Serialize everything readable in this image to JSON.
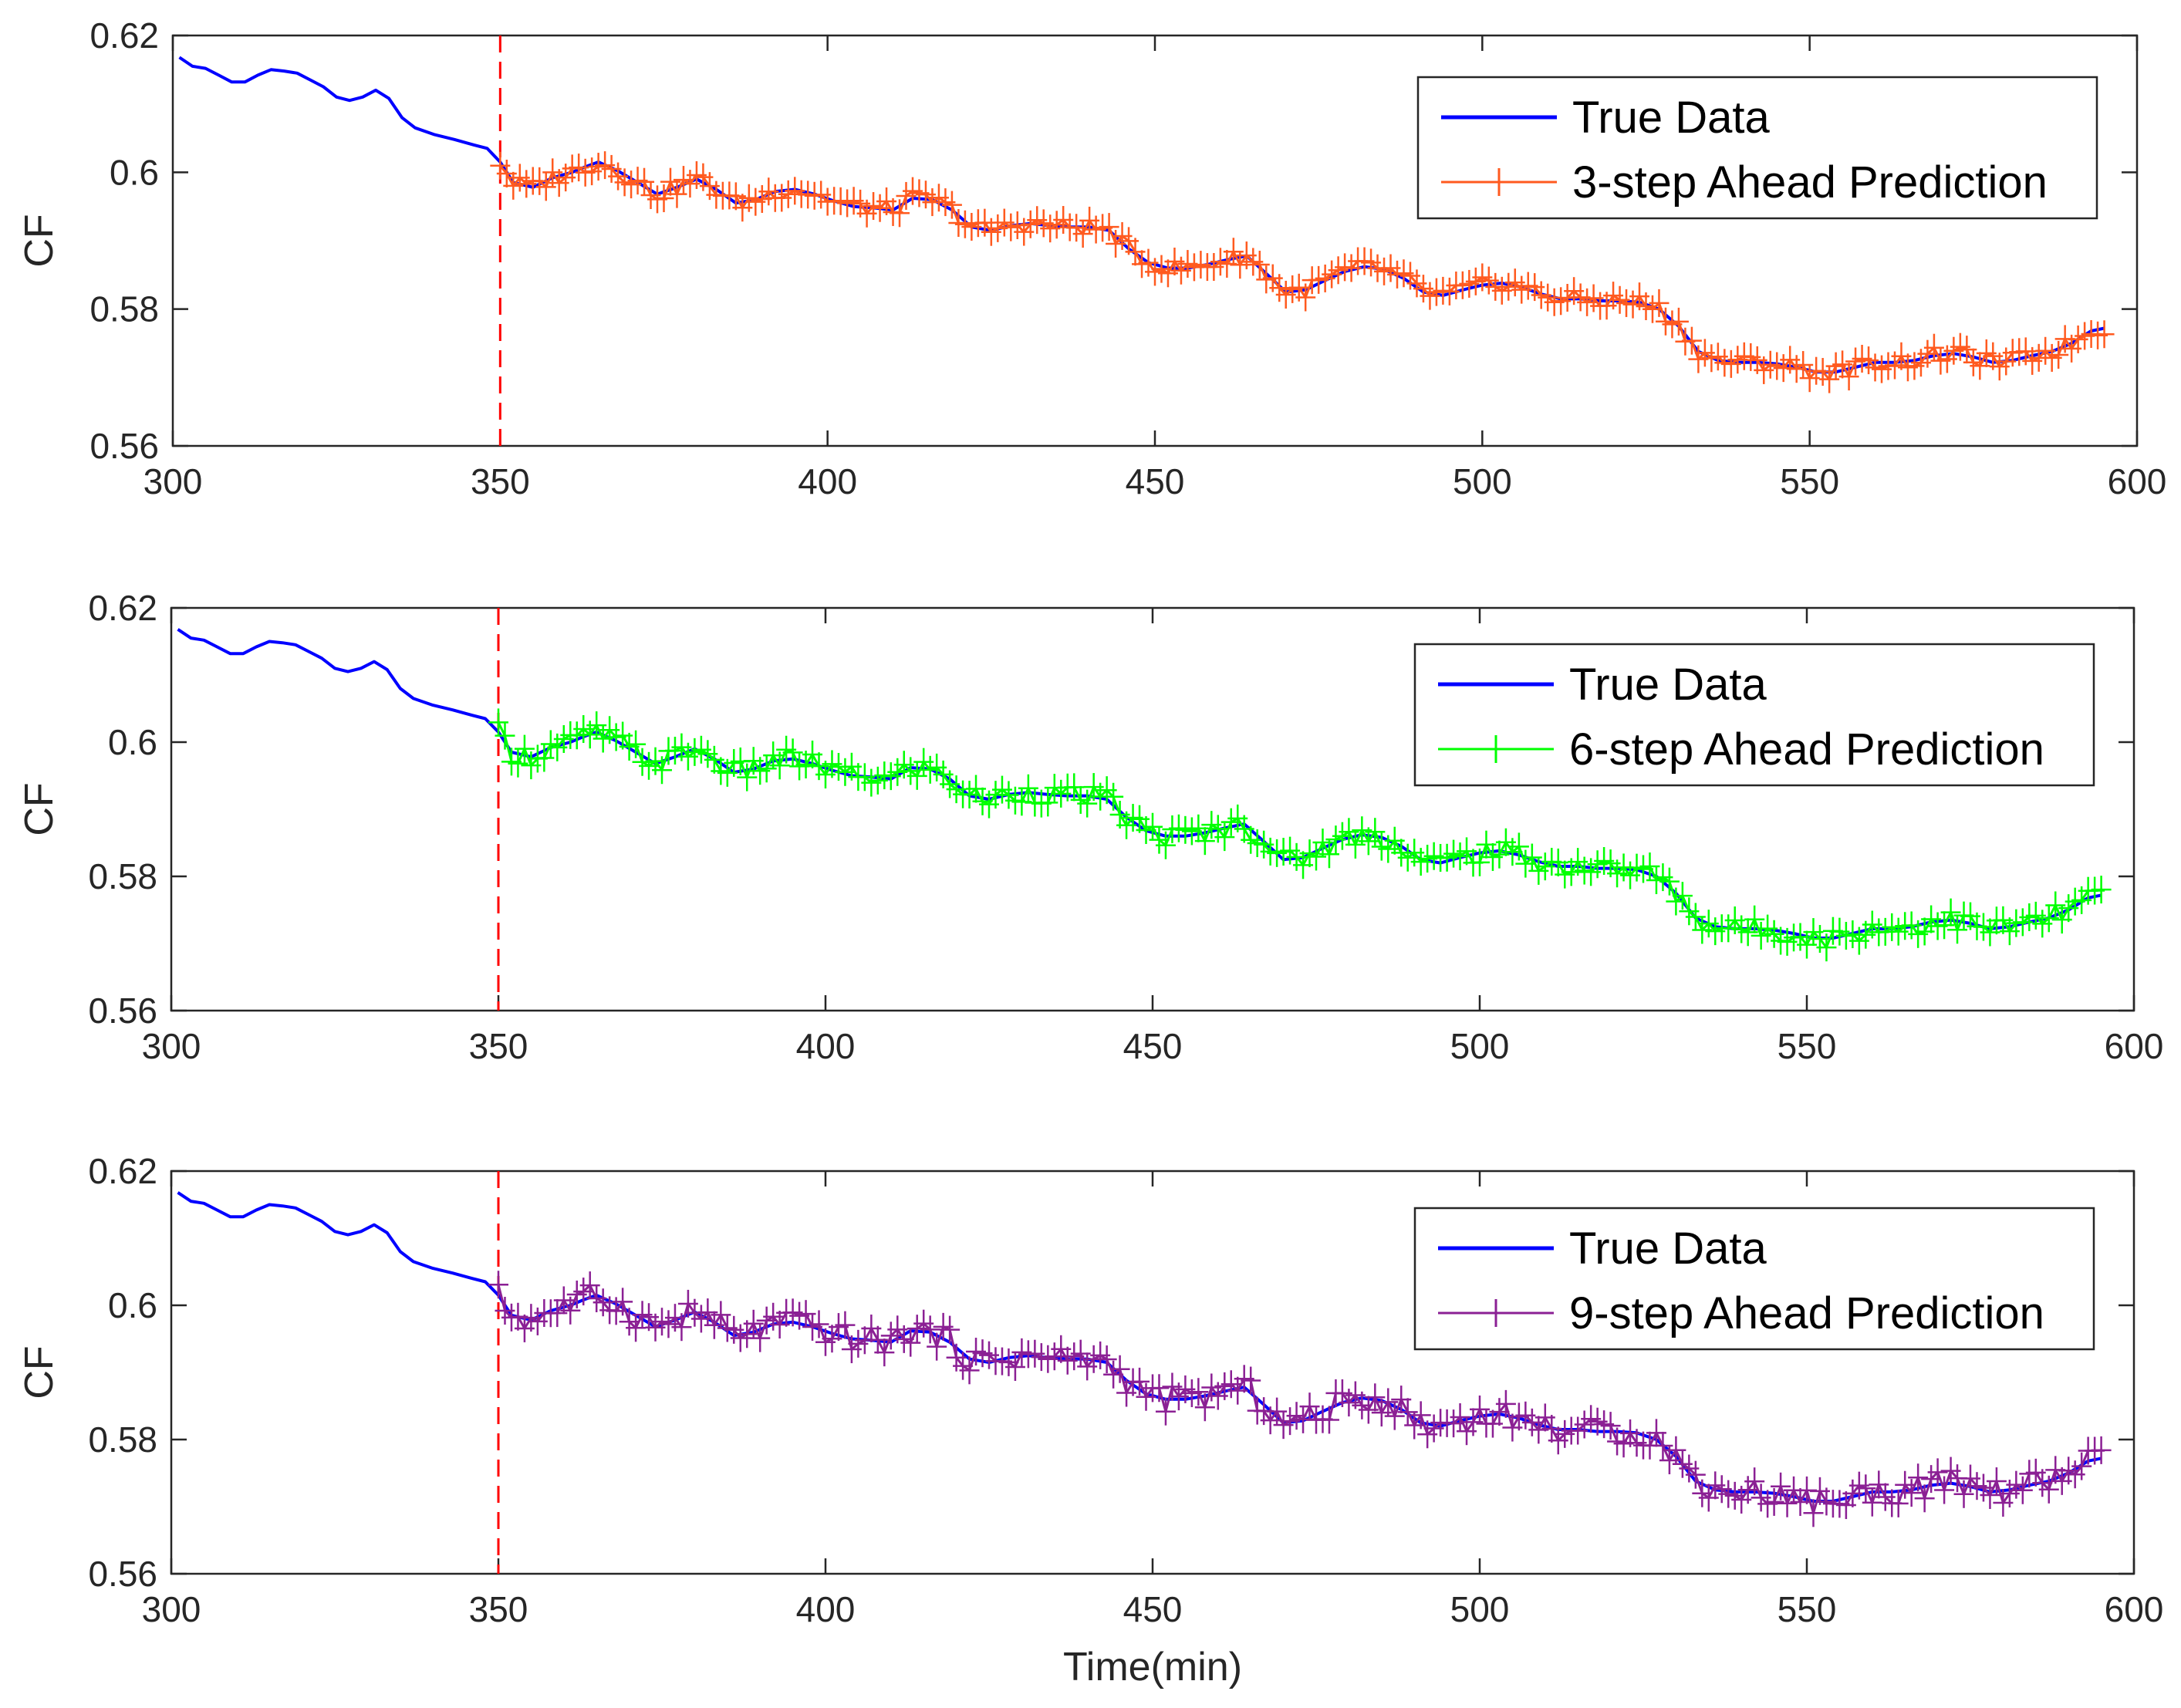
{
  "chart_data": [
    {
      "type": "line",
      "title": "",
      "xlabel": "",
      "ylabel": "CF",
      "xlim": [
        300,
        600
      ],
      "ylim": [
        0.56,
        0.62
      ],
      "xticks": [
        "300",
        "350",
        "400",
        "450",
        "500",
        "550",
        "600"
      ],
      "yticks": [
        "0.56",
        "0.58",
        "0.6",
        "0.62"
      ],
      "split_time": 350,
      "legend_position": "top-right",
      "series": [
        {
          "name": "True Data",
          "color": "#0000ff",
          "marker": "none"
        },
        {
          "name": "3-step Ahead Prediction",
          "color": "#ff5a1f",
          "marker": "plus",
          "horizon": 3
        }
      ]
    },
    {
      "type": "line",
      "title": "",
      "xlabel": "",
      "ylabel": "CF",
      "xlim": [
        300,
        600
      ],
      "ylim": [
        0.56,
        0.62
      ],
      "xticks": [
        "300",
        "350",
        "400",
        "450",
        "500",
        "550",
        "600"
      ],
      "yticks": [
        "0.56",
        "0.58",
        "0.6",
        "0.62"
      ],
      "split_time": 350,
      "legend_position": "top-right",
      "series": [
        {
          "name": "True Data",
          "color": "#0000ff",
          "marker": "none"
        },
        {
          "name": "6-step Ahead Prediction",
          "color": "#00ff00",
          "marker": "plus",
          "horizon": 6
        }
      ]
    },
    {
      "type": "line",
      "title": "",
      "xlabel": "Time(min)",
      "ylabel": "CF",
      "xlim": [
        300,
        600
      ],
      "ylim": [
        0.56,
        0.62
      ],
      "xticks": [
        "300",
        "350",
        "400",
        "450",
        "500",
        "550",
        "600"
      ],
      "yticks": [
        "0.56",
        "0.58",
        "0.6",
        "0.62"
      ],
      "split_time": 350,
      "legend_position": "top-right",
      "series": [
        {
          "name": "True Data",
          "color": "#0000ff",
          "marker": "none"
        },
        {
          "name": "9-step Ahead Prediction",
          "color": "#8b2094",
          "marker": "plus",
          "horizon": 9
        }
      ]
    }
  ],
  "true_data": {
    "t": [
      301,
      303,
      305,
      307,
      309,
      311,
      313,
      315,
      317,
      319,
      321,
      323,
      325,
      327,
      329,
      331,
      333,
      335,
      337,
      340,
      343,
      346,
      348,
      350,
      352,
      355,
      358,
      361,
      363,
      365,
      368,
      371,
      374,
      377,
      380,
      383,
      386,
      389,
      392,
      395,
      398,
      401,
      404,
      407,
      410,
      413,
      416,
      419,
      422,
      425,
      428,
      431,
      434,
      437,
      440,
      443,
      446,
      449,
      452,
      455,
      458,
      461,
      464,
      467,
      470,
      473,
      476,
      479,
      482,
      485,
      488,
      491,
      494,
      497,
      500,
      503,
      506,
      509,
      512,
      515,
      518,
      521,
      524,
      527,
      530,
      533,
      536,
      539,
      542,
      545,
      548,
      551,
      554,
      557,
      560,
      563,
      566,
      569,
      572,
      575,
      578,
      581,
      584,
      587,
      590,
      593,
      595
    ],
    "cf": [
      0.6168,
      0.6155,
      0.6152,
      0.6142,
      0.6132,
      0.6132,
      0.6142,
      0.615,
      0.6148,
      0.6145,
      0.6135,
      0.6125,
      0.611,
      0.6105,
      0.611,
      0.612,
      0.6108,
      0.608,
      0.6065,
      0.6055,
      0.6048,
      0.604,
      0.6035,
      0.6015,
      0.5985,
      0.5978,
      0.5992,
      0.6,
      0.6008,
      0.6015,
      0.6002,
      0.5985,
      0.5968,
      0.5978,
      0.599,
      0.5975,
      0.5955,
      0.596,
      0.5972,
      0.5975,
      0.5968,
      0.5958,
      0.595,
      0.5948,
      0.5945,
      0.5962,
      0.596,
      0.5945,
      0.592,
      0.5915,
      0.5922,
      0.5925,
      0.5922,
      0.592,
      0.592,
      0.5915,
      0.5888,
      0.5868,
      0.586,
      0.586,
      0.5865,
      0.5872,
      0.5878,
      0.5852,
      0.5825,
      0.5828,
      0.5842,
      0.5855,
      0.5862,
      0.5858,
      0.5845,
      0.5825,
      0.582,
      0.5828,
      0.5835,
      0.5838,
      0.5832,
      0.5822,
      0.5815,
      0.5815,
      0.5812,
      0.5812,
      0.581,
      0.58,
      0.5775,
      0.5738,
      0.5725,
      0.5722,
      0.5722,
      0.572,
      0.5715,
      0.5708,
      0.5708,
      0.5715,
      0.5722,
      0.5722,
      0.5725,
      0.5732,
      0.5735,
      0.573,
      0.5722,
      0.5725,
      0.5732,
      0.5738,
      0.575,
      0.5768,
      0.5772
    ]
  }
}
